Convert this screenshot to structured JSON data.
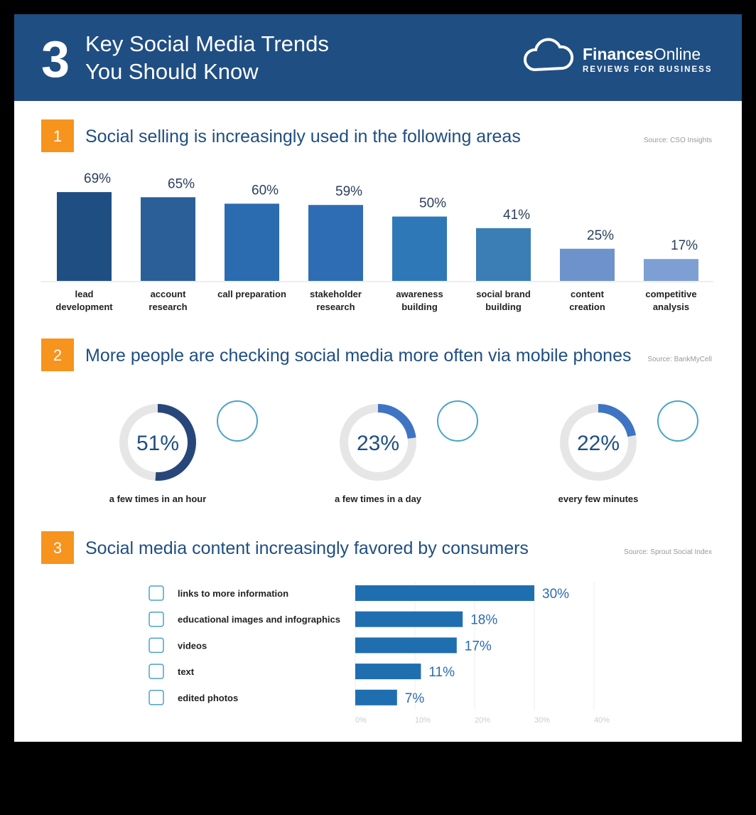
{
  "header": {
    "number": "3",
    "title": [
      "Key Social Media Trends",
      "You Should Know"
    ],
    "brand": [
      "Finances",
      "Online"
    ],
    "tagline": "REVIEWS FOR BUSINESS"
  },
  "chart_data": [
    {
      "type": "bar",
      "number": "1",
      "title": "Social selling is increasingly used in the following areas",
      "source": "Source: CSO Insights",
      "categories": [
        "lead development",
        "account research",
        "call preparation",
        "stakeholder research",
        "awareness building",
        "social brand building",
        "content creation",
        "competitive analysis"
      ],
      "values": [
        69,
        65,
        60,
        59,
        50,
        41,
        25,
        17
      ],
      "value_labels": [
        "69%",
        "65%",
        "60%",
        "59%",
        "50%",
        "41%",
        "25%",
        "17%"
      ],
      "colors": [
        "#1f4e82",
        "#2a5f97",
        "#2b6cb0",
        "#2e6db4",
        "#2f78b8",
        "#3a7eb5",
        "#6e93cc",
        "#7d9fd4"
      ]
    },
    {
      "type": "donut",
      "number": "2",
      "title": "More people are checking social media more often via mobile phones",
      "source": "Source: BankMyCell",
      "categories": [
        "a few times in an hour",
        "a few times in a day",
        "every few minutes"
      ],
      "values": [
        51,
        23,
        22
      ],
      "value_labels": [
        "51%",
        "23%",
        "22%"
      ],
      "colors": [
        "#27477a",
        "#3f74c4",
        "#3f74c4"
      ],
      "track_color": "#e6e6e6"
    },
    {
      "type": "hbar",
      "number": "3",
      "title": "Social media content increasingly favored by consumers",
      "source": "Source: Sprout Social Index",
      "categories": [
        "links to more information",
        "educational images and infographics",
        "videos",
        "text",
        "edited photos"
      ],
      "values": [
        30,
        18,
        17,
        11,
        7
      ],
      "value_labels": [
        "30%",
        "18%",
        "17%",
        "11%",
        "7%"
      ],
      "color": "#1f6fb0",
      "xlim": [
        0,
        40
      ],
      "xticks": [
        {
          "value": 0,
          "label": "0%"
        },
        {
          "value": 10,
          "label": "10%"
        },
        {
          "value": 20,
          "label": "20%"
        },
        {
          "value": 30,
          "label": "30%"
        },
        {
          "value": 40,
          "label": "40%"
        }
      ],
      "grid": true
    }
  ]
}
